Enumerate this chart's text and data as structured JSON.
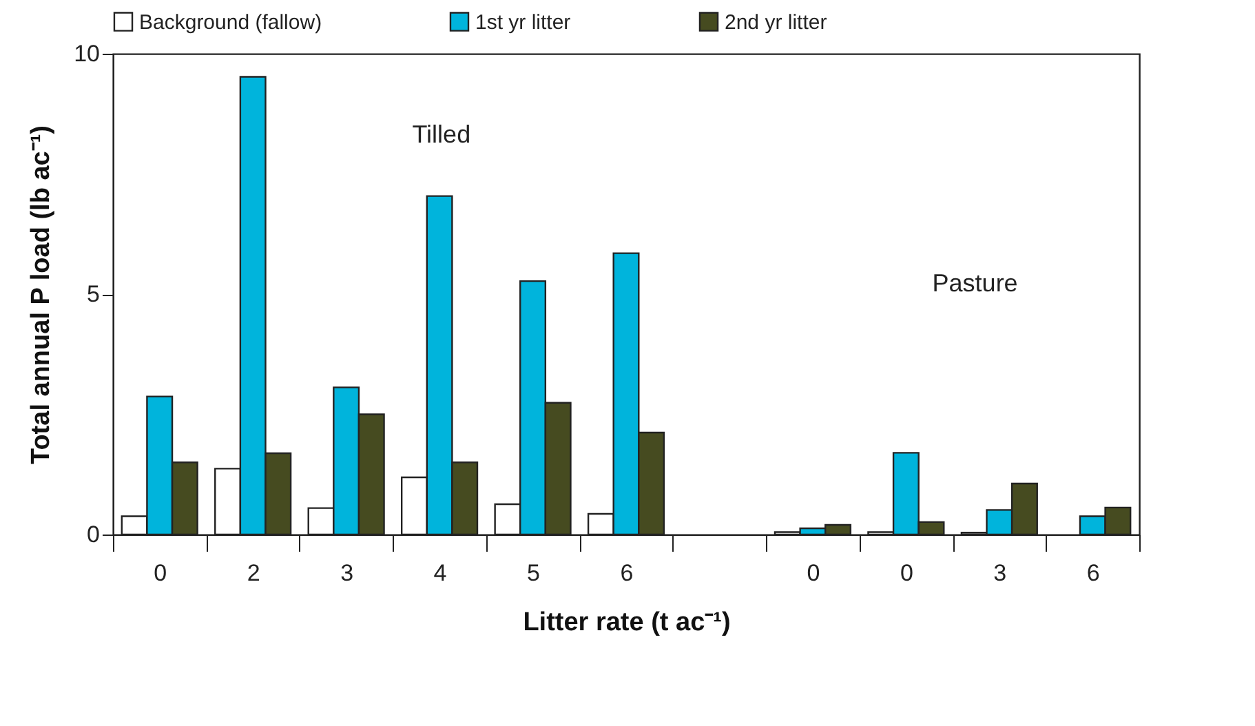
{
  "chart_data": {
    "type": "bar",
    "xlabel": "Litter rate (t ac⁻¹)",
    "ylabel": "Total annual P load (lb ac⁻¹)",
    "categories": [
      "0",
      "2",
      "3",
      "4",
      "5",
      "6",
      null,
      "0",
      "0",
      "3",
      "6"
    ],
    "series": [
      {
        "name": "Background (fallow)",
        "color": "#ffffff",
        "values": [
          0.38,
          1.37,
          0.55,
          1.19,
          0.63,
          0.43,
          null,
          0.05,
          0.05,
          0.04,
          null
        ]
      },
      {
        "name": "1st yr litter",
        "color": "#00b4dc",
        "values": [
          2.87,
          9.52,
          3.06,
          7.04,
          5.27,
          5.85,
          null,
          0.13,
          1.7,
          0.51,
          0.38
        ]
      },
      {
        "name": "2nd yr litter",
        "color": "#464b20",
        "values": [
          1.5,
          1.69,
          2.5,
          1.5,
          2.74,
          2.12,
          null,
          0.2,
          0.26,
          1.06,
          0.56
        ]
      }
    ],
    "ylim": [
      0,
      10
    ],
    "yticks": [
      0,
      5,
      10
    ],
    "legend": "top",
    "annotations": [
      "Tilled",
      "Pasture"
    ]
  }
}
